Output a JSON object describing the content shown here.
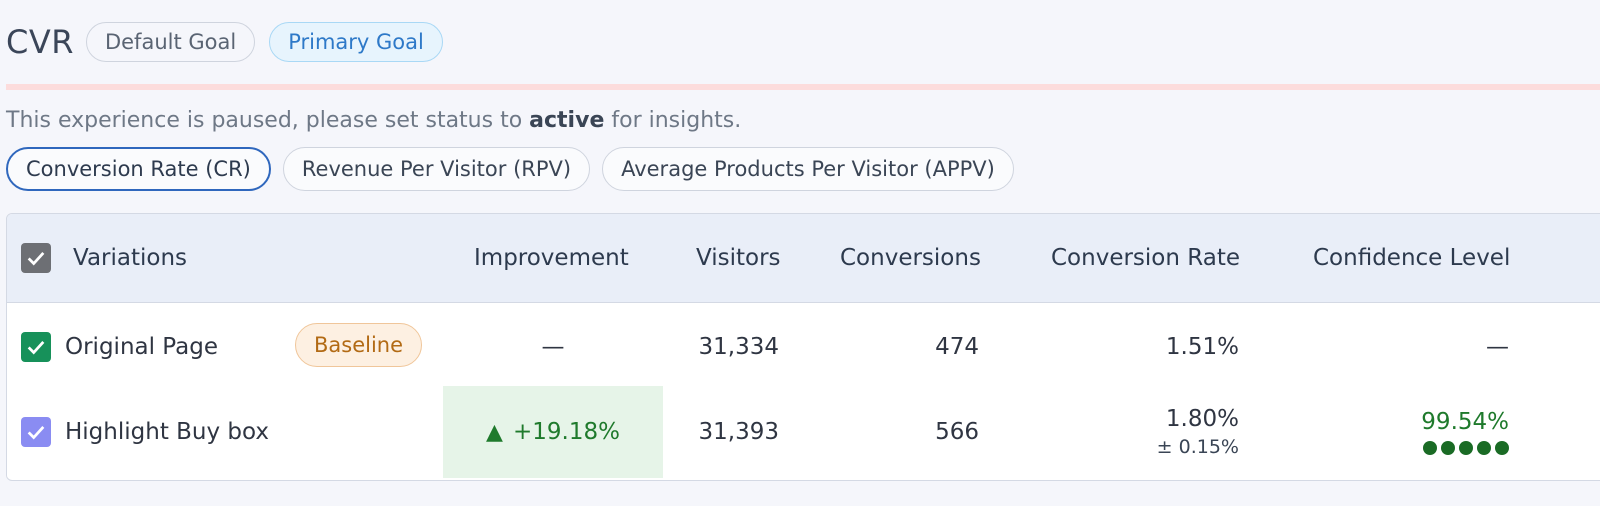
{
  "header": {
    "title": "CVR",
    "badges": {
      "default": "Default Goal",
      "primary": "Primary Goal"
    }
  },
  "notice": {
    "prefix": "This experience is paused, please set status to ",
    "bold": "active",
    "suffix": " for insights."
  },
  "metric_tabs": [
    {
      "label": "Conversion Rate (CR)",
      "active": true
    },
    {
      "label": "Revenue Per Visitor (RPV)",
      "active": false
    },
    {
      "label": "Average Products Per Visitor (APPV)",
      "active": false
    }
  ],
  "table": {
    "columns": {
      "variations": "Variations",
      "improvement": "Improvement",
      "visitors": "Visitors",
      "conversions": "Conversions",
      "conversion_rate": "Conversion Rate",
      "confidence_level": "Confidence Level"
    },
    "rows": [
      {
        "name": "Original Page",
        "badge": "Baseline",
        "improvement": "—",
        "visitors": "31,334",
        "conversions": "474",
        "conversion_rate": "1.51%",
        "confidence": "—"
      },
      {
        "name": "Highlight Buy box",
        "improvement_arrow": "▲",
        "improvement": "+19.18%",
        "visitors": "31,393",
        "conversions": "566",
        "conversion_rate": "1.80%",
        "conversion_rate_margin": "± 0.15%",
        "confidence": "99.54%",
        "confidence_dots": 5
      }
    ]
  },
  "colors": {
    "accent": "#2f67bd",
    "positive": "#1f7a2c",
    "baseline": "#b26a14",
    "alert_line": "#fcdcdc"
  },
  "icons": {
    "checkbox": "checkmark-icon",
    "improvement_up": "up-arrow-icon"
  }
}
